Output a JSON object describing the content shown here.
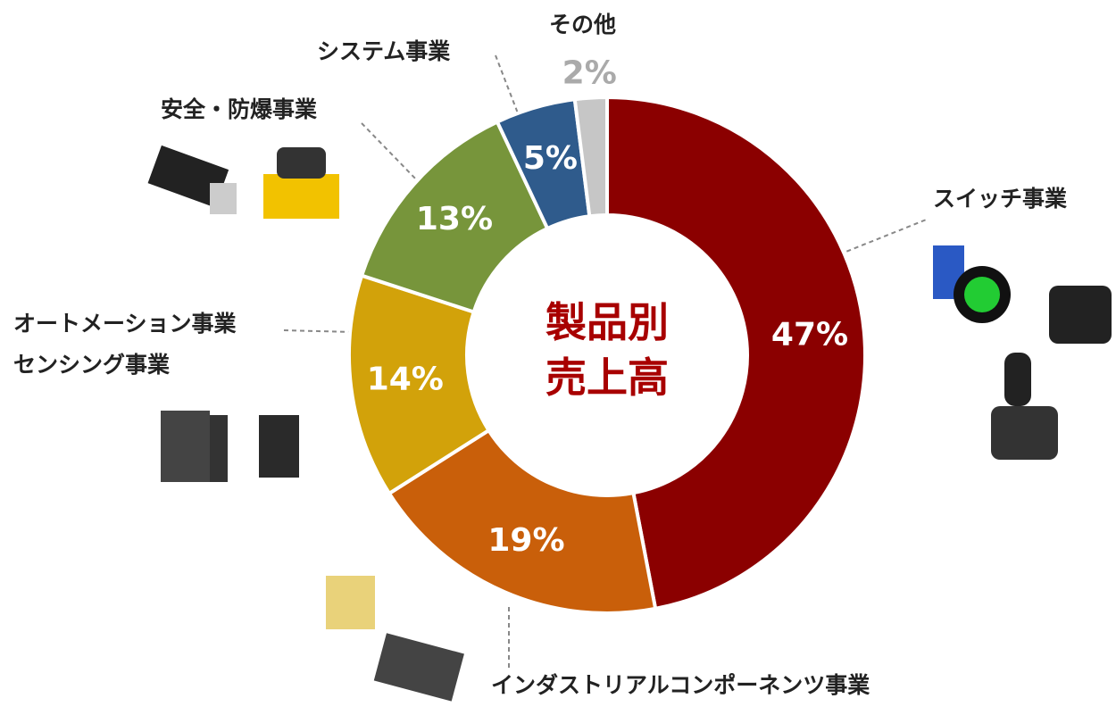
{
  "chart_data": {
    "type": "donut",
    "center_label": "製品別\n売上高",
    "categories": [
      "スイッチ事業",
      "インダストリアルコンポーネンツ事業",
      "オートメーション事業\nセンシング事業",
      "安全・防爆事業",
      "システム事業",
      "その他"
    ],
    "values": [
      47,
      19,
      14,
      13,
      5,
      2
    ],
    "value_labels": [
      "47%",
      "19%",
      "14%",
      "13%",
      "5%",
      "2%"
    ],
    "colors": [
      "#8b0000",
      "#c95f0a",
      "#d2a20a",
      "#77953b",
      "#2f5b8c",
      "#c6c6c6"
    ]
  }
}
